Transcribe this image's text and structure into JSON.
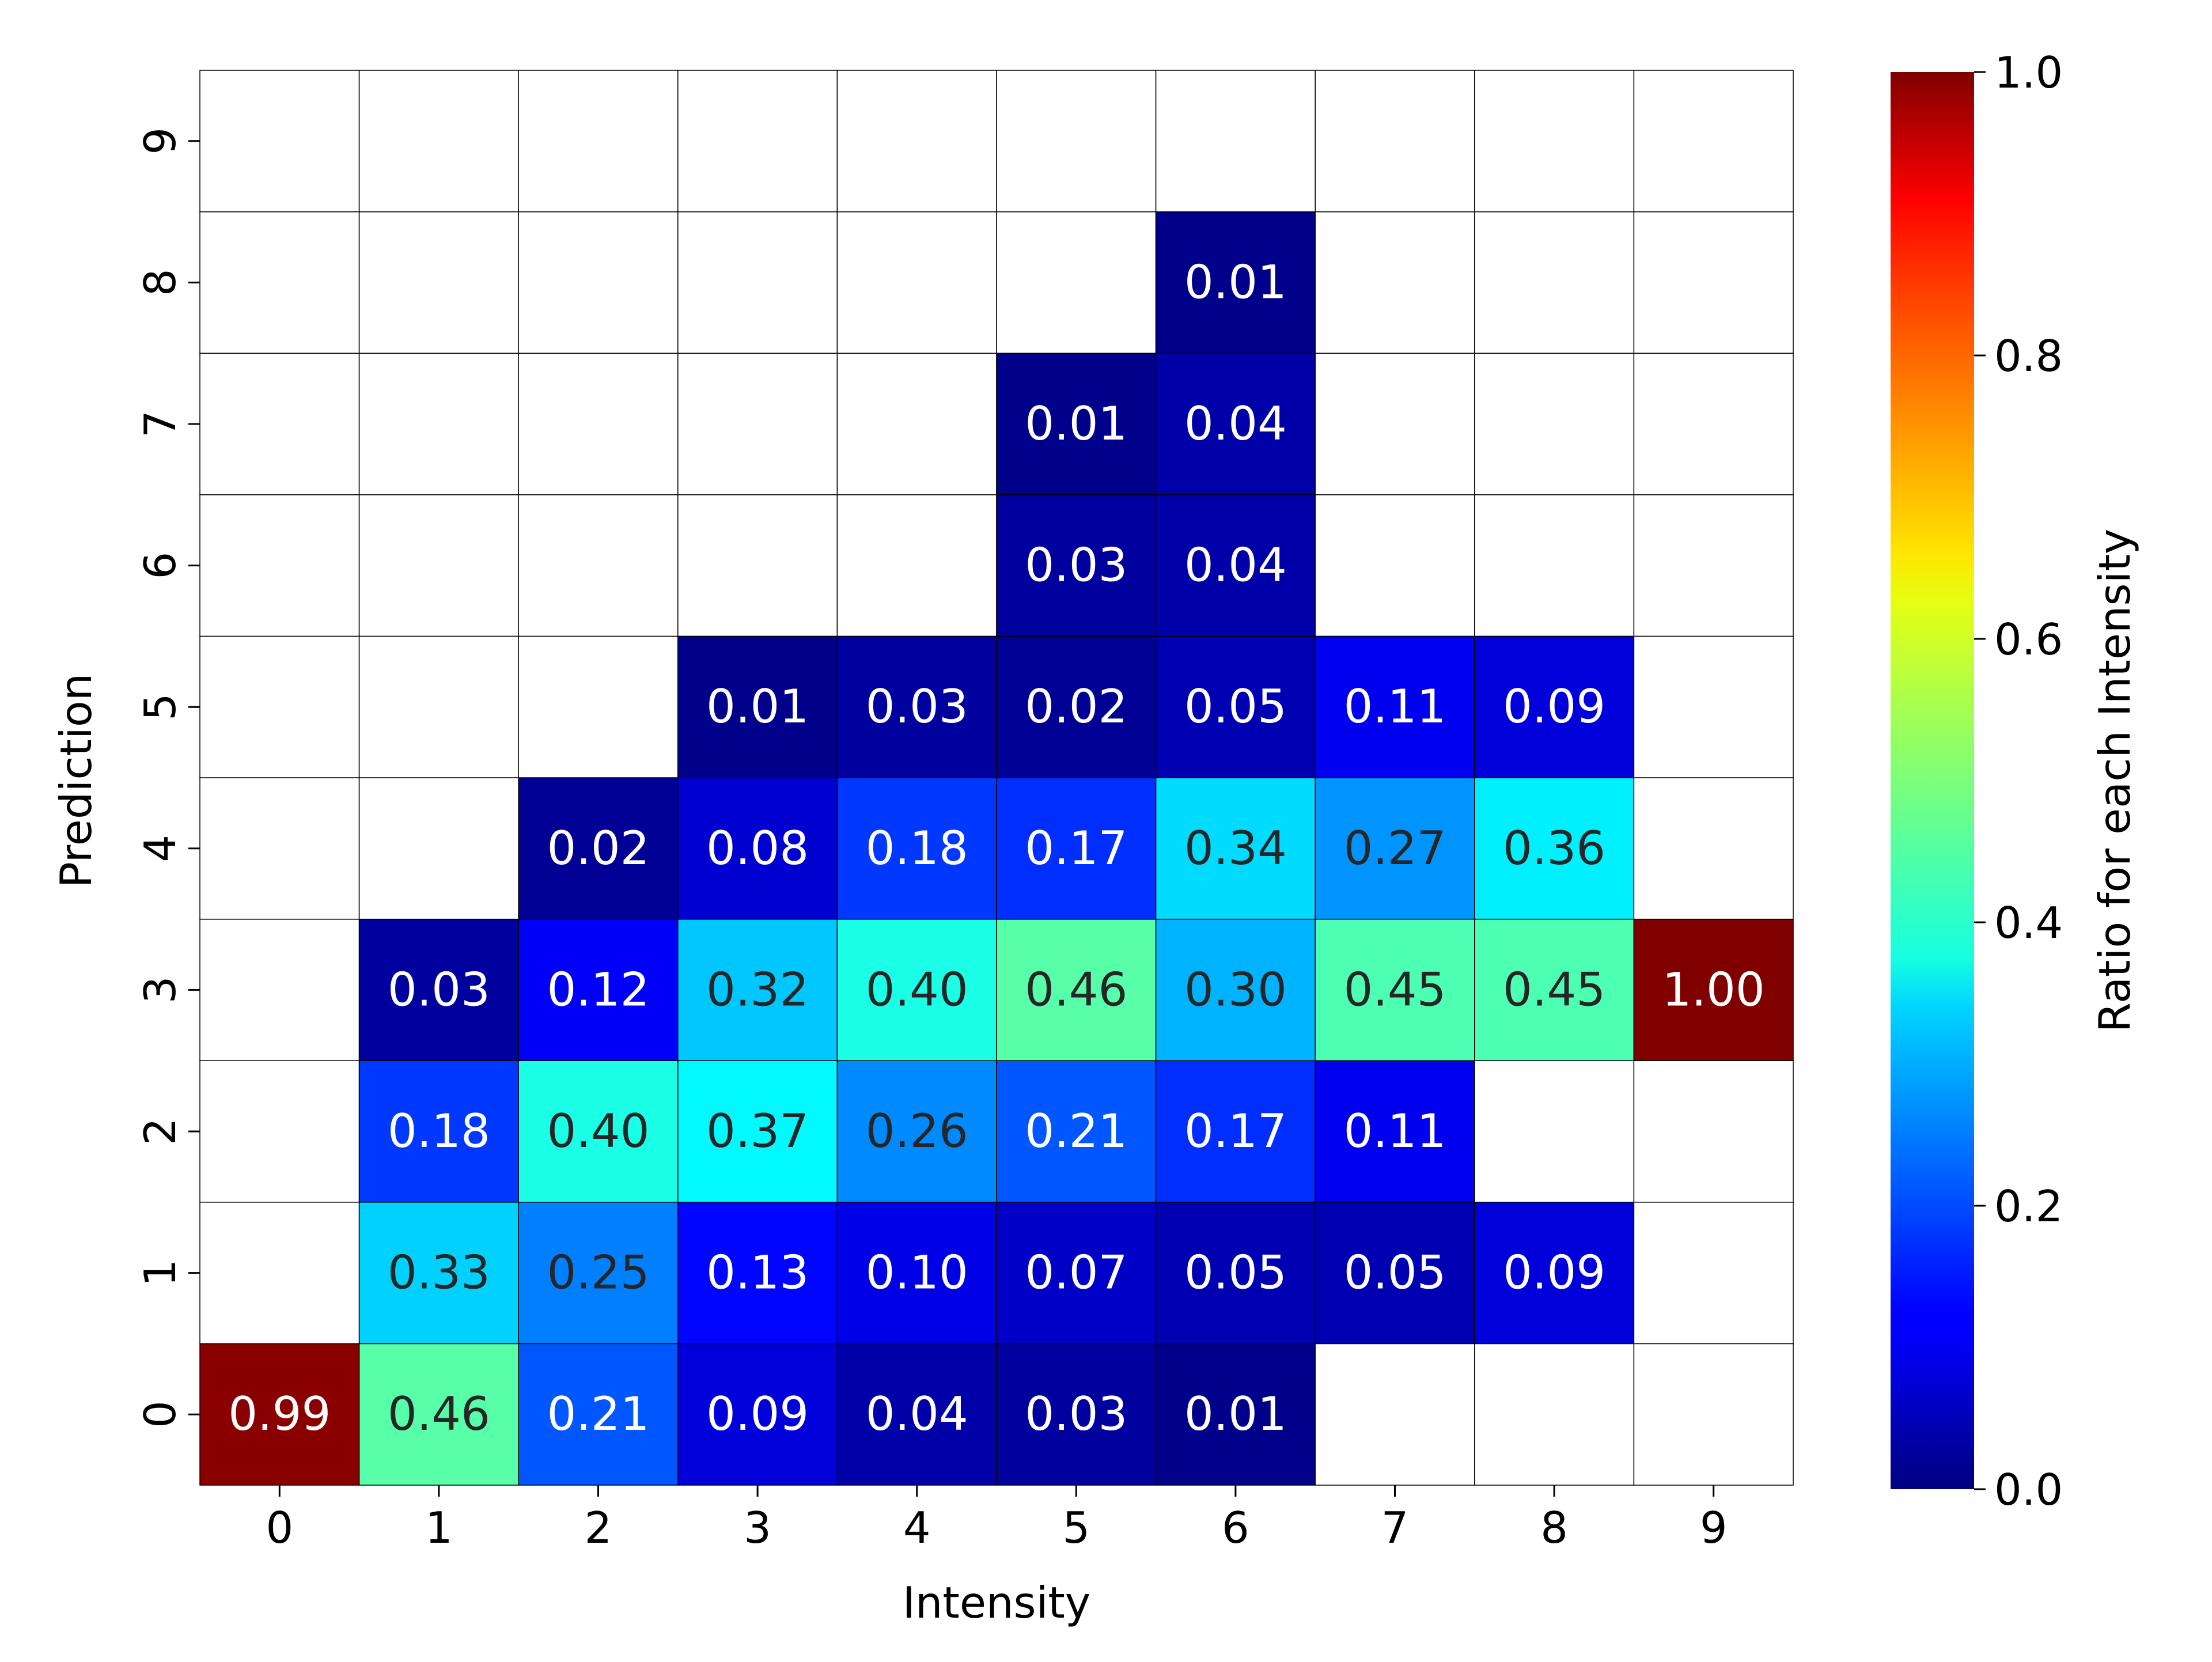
{
  "chart_data": {
    "type": "heatmap",
    "title": "",
    "xlabel": "Intensity",
    "ylabel": "Prediction",
    "x_categories": [
      "0",
      "1",
      "2",
      "3",
      "4",
      "5",
      "6",
      "7",
      "8",
      "9"
    ],
    "y_categories": [
      "0",
      "1",
      "2",
      "3",
      "4",
      "5",
      "6",
      "7",
      "8",
      "9"
    ],
    "value_format": "2 decimals",
    "empty_cells": "blank (no value)",
    "colormap": "jet",
    "colorbar": {
      "label": "Ratio for each Intensity",
      "range": [
        0.0,
        1.0
      ],
      "ticks": [
        "0.0",
        "0.2",
        "0.4",
        "0.6",
        "0.8",
        "1.0"
      ]
    },
    "cells": [
      {
        "x": "0",
        "y": "0",
        "value": 0.99
      },
      {
        "x": "1",
        "y": "0",
        "value": 0.46
      },
      {
        "x": "1",
        "y": "1",
        "value": 0.33
      },
      {
        "x": "1",
        "y": "2",
        "value": 0.18
      },
      {
        "x": "1",
        "y": "3",
        "value": 0.03
      },
      {
        "x": "2",
        "y": "0",
        "value": 0.21
      },
      {
        "x": "2",
        "y": "1",
        "value": 0.25
      },
      {
        "x": "2",
        "y": "2",
        "value": 0.4
      },
      {
        "x": "2",
        "y": "3",
        "value": 0.12
      },
      {
        "x": "2",
        "y": "4",
        "value": 0.02
      },
      {
        "x": "3",
        "y": "0",
        "value": 0.09
      },
      {
        "x": "3",
        "y": "1",
        "value": 0.13
      },
      {
        "x": "3",
        "y": "2",
        "value": 0.37
      },
      {
        "x": "3",
        "y": "3",
        "value": 0.32
      },
      {
        "x": "3",
        "y": "4",
        "value": 0.08
      },
      {
        "x": "3",
        "y": "5",
        "value": 0.01
      },
      {
        "x": "4",
        "y": "0",
        "value": 0.04
      },
      {
        "x": "4",
        "y": "1",
        "value": 0.1
      },
      {
        "x": "4",
        "y": "2",
        "value": 0.26
      },
      {
        "x": "4",
        "y": "3",
        "value": 0.4
      },
      {
        "x": "4",
        "y": "4",
        "value": 0.18
      },
      {
        "x": "4",
        "y": "5",
        "value": 0.03
      },
      {
        "x": "5",
        "y": "0",
        "value": 0.03
      },
      {
        "x": "5",
        "y": "1",
        "value": 0.07
      },
      {
        "x": "5",
        "y": "2",
        "value": 0.21
      },
      {
        "x": "5",
        "y": "3",
        "value": 0.46
      },
      {
        "x": "5",
        "y": "4",
        "value": 0.17
      },
      {
        "x": "5",
        "y": "5",
        "value": 0.02
      },
      {
        "x": "5",
        "y": "6",
        "value": 0.03
      },
      {
        "x": "5",
        "y": "7",
        "value": 0.01
      },
      {
        "x": "6",
        "y": "0",
        "value": 0.01
      },
      {
        "x": "6",
        "y": "1",
        "value": 0.05
      },
      {
        "x": "6",
        "y": "2",
        "value": 0.17
      },
      {
        "x": "6",
        "y": "3",
        "value": 0.3
      },
      {
        "x": "6",
        "y": "4",
        "value": 0.34
      },
      {
        "x": "6",
        "y": "5",
        "value": 0.05
      },
      {
        "x": "6",
        "y": "6",
        "value": 0.04
      },
      {
        "x": "6",
        "y": "7",
        "value": 0.04
      },
      {
        "x": "6",
        "y": "8",
        "value": 0.01
      },
      {
        "x": "7",
        "y": "1",
        "value": 0.05
      },
      {
        "x": "7",
        "y": "2",
        "value": 0.11
      },
      {
        "x": "7",
        "y": "3",
        "value": 0.45
      },
      {
        "x": "7",
        "y": "4",
        "value": 0.27
      },
      {
        "x": "7",
        "y": "5",
        "value": 0.11
      },
      {
        "x": "8",
        "y": "1",
        "value": 0.09
      },
      {
        "x": "8",
        "y": "3",
        "value": 0.45
      },
      {
        "x": "8",
        "y": "4",
        "value": 0.36
      },
      {
        "x": "8",
        "y": "5",
        "value": 0.09
      },
      {
        "x": "9",
        "y": "3",
        "value": 1.0
      }
    ]
  }
}
